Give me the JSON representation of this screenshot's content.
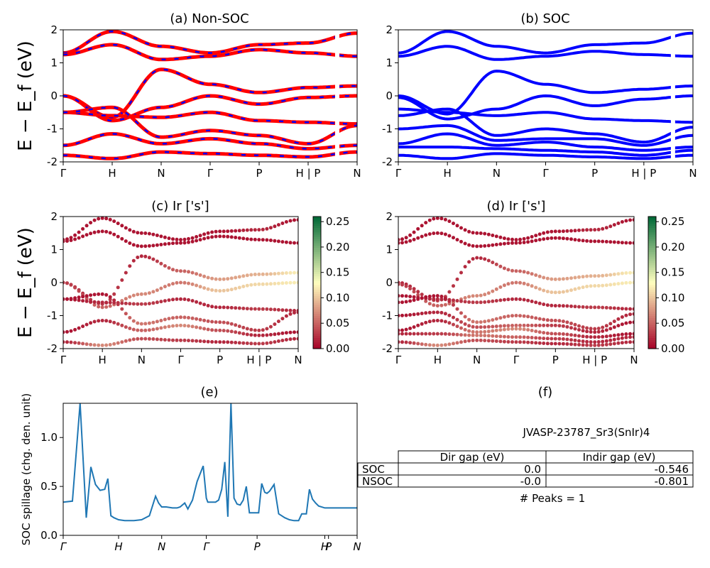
{
  "panels": {
    "a": {
      "title": "(a) Non-SOC"
    },
    "b": {
      "title": "(b) SOC"
    },
    "c": {
      "title": "(c)  Ir ['s']"
    },
    "d": {
      "title": "(d) Ir ['s']"
    },
    "e": {
      "title": "(e)"
    },
    "f": {
      "title": "(f)"
    }
  },
  "ylabel_main": "E − E_f (eV)",
  "ylabel_spillage": "SOC spillage (chg. den. unit)",
  "kpath_labels": [
    "Γ",
    "H",
    "N",
    "Γ",
    "P",
    "H | P",
    "N"
  ],
  "spillage_kpath_labels": [
    "Γ",
    "H",
    "N",
    "Γ",
    "P",
    "H",
    "P",
    "N"
  ],
  "colorbar_ticks": [
    "0.00",
    "0.05",
    "0.10",
    "0.15",
    "0.20",
    "0.25"
  ],
  "colormap": {
    "low": "#a50026",
    "mid": "#ffffbf",
    "high": "#006837"
  },
  "colors": {
    "nsoc_main": "#ff0000",
    "nsoc_dash": "#0000ff",
    "soc": "#0000ff",
    "spillage": "#1f77b4"
  },
  "info": {
    "material": "JVASP-23787_Sr3(SnIr)4",
    "table_headers": [
      "Dir gap (eV)",
      "Indir gap (eV)"
    ],
    "table_rows": [
      {
        "label": "SOC",
        "dir": "0.0",
        "indir": "-0.546"
      },
      {
        "label": "NSOC",
        "dir": "-0.0",
        "indir": "-0.801"
      }
    ],
    "peaks": "# Peaks = 1"
  },
  "chart_data": [
    {
      "type": "line",
      "title": "(a) Non-SOC",
      "ylabel": "E − E_f (eV)",
      "ylim": [
        -2,
        2
      ],
      "yticks": [
        -2,
        -1,
        0,
        1,
        2
      ],
      "x_ticks": [
        "Γ",
        "H",
        "N",
        "Γ",
        "P",
        "H | P",
        "N"
      ],
      "series": [
        {
          "x": [
            0,
            1,
            2,
            3,
            4,
            5,
            6
          ],
          "y": [
            1.3,
            1.95,
            1.5,
            1.3,
            1.55,
            1.6,
            1.9
          ]
        },
        {
          "x": [
            0,
            1,
            2,
            3,
            4,
            5,
            6
          ],
          "y": [
            1.25,
            1.55,
            1.1,
            1.2,
            1.4,
            1.3,
            1.2
          ]
        },
        {
          "x": [
            0,
            1,
            2,
            3,
            4,
            5,
            6
          ],
          "y": [
            0.0,
            -0.65,
            0.8,
            0.35,
            0.1,
            0.25,
            0.3
          ]
        },
        {
          "x": [
            0,
            1,
            2,
            3,
            4,
            5,
            6
          ],
          "y": [
            0.0,
            -0.75,
            -0.35,
            0.0,
            -0.25,
            -0.05,
            0.0
          ]
        },
        {
          "x": [
            0,
            1,
            2,
            3,
            4,
            5,
            6
          ],
          "y": [
            -0.5,
            -0.6,
            -0.65,
            -0.5,
            -0.75,
            -0.8,
            -0.85
          ]
        },
        {
          "x": [
            0,
            1,
            2,
            3,
            4,
            5,
            6
          ],
          "y": [
            -0.5,
            -0.35,
            -1.25,
            -1.05,
            -1.2,
            -1.45,
            -0.9
          ]
        },
        {
          "x": [
            0,
            1,
            2,
            3,
            4,
            5,
            6
          ],
          "y": [
            -1.5,
            -1.15,
            -1.45,
            -1.3,
            -1.45,
            -1.6,
            -1.5
          ]
        },
        {
          "x": [
            0,
            1,
            2,
            3,
            4,
            5,
            6
          ],
          "y": [
            -1.8,
            -1.9,
            -1.7,
            -1.75,
            -1.8,
            -1.85,
            -1.7
          ]
        }
      ]
    },
    {
      "type": "line",
      "title": "(b) SOC",
      "ylim": [
        -2,
        2
      ],
      "yticks": [
        -2,
        -1,
        0,
        1,
        2
      ],
      "x_ticks": [
        "Γ",
        "H",
        "N",
        "Γ",
        "P",
        "H | P",
        "N"
      ],
      "series": [
        {
          "x": [
            0,
            1,
            2,
            3,
            4,
            5,
            6
          ],
          "y": [
            1.3,
            1.95,
            1.5,
            1.3,
            1.55,
            1.6,
            1.9
          ]
        },
        {
          "x": [
            0,
            1,
            2,
            3,
            4,
            5,
            6
          ],
          "y": [
            1.2,
            1.5,
            1.1,
            1.2,
            1.35,
            1.25,
            1.2
          ]
        },
        {
          "x": [
            0,
            1,
            2,
            3,
            4,
            5,
            6
          ],
          "y": [
            0.0,
            -0.55,
            0.75,
            0.35,
            0.1,
            0.2,
            0.3
          ]
        },
        {
          "x": [
            0,
            1,
            2,
            3,
            4,
            5,
            6
          ],
          "y": [
            -0.05,
            -0.7,
            -0.4,
            0.0,
            -0.3,
            -0.1,
            0.0
          ]
        },
        {
          "x": [
            0,
            1,
            2,
            3,
            4,
            5,
            6
          ],
          "y": [
            -0.4,
            -0.5,
            -0.6,
            -0.5,
            -0.7,
            -0.75,
            -0.8
          ]
        },
        {
          "x": [
            0,
            1,
            2,
            3,
            4,
            5,
            6
          ],
          "y": [
            -0.6,
            -0.4,
            -1.2,
            -1.0,
            -1.15,
            -1.4,
            -0.95
          ]
        },
        {
          "x": [
            0,
            1,
            2,
            3,
            4,
            5,
            6
          ],
          "y": [
            -1.0,
            -0.9,
            -1.35,
            -1.3,
            -1.3,
            -1.5,
            -1.2
          ]
        },
        {
          "x": [
            0,
            1,
            2,
            3,
            4,
            5,
            6
          ],
          "y": [
            -1.45,
            -1.15,
            -1.5,
            -1.4,
            -1.55,
            -1.65,
            -1.55
          ]
        },
        {
          "x": [
            0,
            1,
            2,
            3,
            4,
            5,
            6
          ],
          "y": [
            -1.55,
            -1.55,
            -1.6,
            -1.65,
            -1.7,
            -1.8,
            -1.65
          ]
        },
        {
          "x": [
            0,
            1,
            2,
            3,
            4,
            5,
            6
          ],
          "y": [
            -1.8,
            -1.9,
            -1.75,
            -1.8,
            -1.85,
            -1.9,
            -1.8
          ]
        }
      ]
    },
    {
      "type": "scatter",
      "title": "(c)  Ir ['s']",
      "ylim": [
        -2,
        2
      ],
      "yticks": [
        -2,
        -1,
        0,
        1,
        2
      ],
      "x_ticks": [
        "Γ",
        "H",
        "N",
        "Γ",
        "P",
        "H | P",
        "N"
      ],
      "colorbar": {
        "min": 0.0,
        "max": 0.26,
        "ticks": [
          0,
          0.05,
          0.1,
          0.15,
          0.2,
          0.25
        ]
      },
      "series": [
        {
          "x": [
            0,
            1,
            2,
            3,
            4,
            5,
            6
          ],
          "y": [
            1.3,
            1.95,
            1.5,
            1.3,
            1.55,
            1.6,
            1.9
          ],
          "weight": [
            0.01,
            0.01,
            0.01,
            0.01,
            0.01,
            0.02,
            0.01
          ]
        },
        {
          "x": [
            0,
            1,
            2,
            3,
            4,
            5,
            6
          ],
          "y": [
            1.25,
            1.55,
            1.1,
            1.2,
            1.4,
            1.3,
            1.2
          ],
          "weight": [
            0.01,
            0.01,
            0.01,
            0.01,
            0.01,
            0.01,
            0.01
          ]
        },
        {
          "x": [
            0,
            1,
            2,
            3,
            4,
            5,
            6
          ],
          "y": [
            0.0,
            -0.65,
            0.8,
            0.35,
            0.1,
            0.25,
            0.3
          ],
          "weight": [
            0.02,
            0.03,
            0.02,
            0.05,
            0.08,
            0.09,
            0.12
          ]
        },
        {
          "x": [
            0,
            1,
            2,
            3,
            4,
            5,
            6
          ],
          "y": [
            0.0,
            -0.75,
            -0.35,
            0.0,
            -0.25,
            -0.05,
            0.0
          ],
          "weight": [
            0.03,
            0.05,
            0.07,
            0.06,
            0.1,
            0.11,
            0.12
          ]
        },
        {
          "x": [
            0,
            1,
            2,
            3,
            4,
            5,
            6
          ],
          "y": [
            -0.5,
            -0.6,
            -0.65,
            -0.5,
            -0.75,
            -0.8,
            -0.85
          ],
          "weight": [
            0.01,
            0.02,
            0.03,
            0.02,
            0.02,
            0.03,
            0.02
          ]
        },
        {
          "x": [
            0,
            1,
            2,
            3,
            4,
            5,
            6
          ],
          "y": [
            -0.5,
            -0.35,
            -1.25,
            -1.05,
            -1.2,
            -1.45,
            -0.9
          ],
          "weight": [
            0.01,
            0.01,
            0.06,
            0.05,
            0.04,
            0.03,
            0.02
          ]
        },
        {
          "x": [
            0,
            1,
            2,
            3,
            4,
            5,
            6
          ],
          "y": [
            -1.5,
            -1.15,
            -1.45,
            -1.3,
            -1.45,
            -1.6,
            -1.5
          ],
          "weight": [
            0.01,
            0.02,
            0.05,
            0.07,
            0.04,
            0.02,
            0.01
          ]
        },
        {
          "x": [
            0,
            1,
            2,
            3,
            4,
            5,
            6
          ],
          "y": [
            -1.8,
            -1.9,
            -1.7,
            -1.75,
            -1.8,
            -1.85,
            -1.7
          ],
          "weight": [
            0.02,
            0.07,
            0.04,
            0.03,
            0.02,
            0.03,
            0.02
          ]
        }
      ]
    },
    {
      "type": "scatter",
      "title": "(d) Ir ['s']",
      "ylim": [
        -2,
        2
      ],
      "yticks": [
        -2,
        -1,
        0,
        1,
        2
      ],
      "x_ticks": [
        "Γ",
        "H",
        "N",
        "Γ",
        "P",
        "H | P",
        "N"
      ],
      "colorbar": {
        "min": 0.0,
        "max": 0.26,
        "ticks": [
          0,
          0.05,
          0.1,
          0.15,
          0.2,
          0.25
        ]
      },
      "series": [
        {
          "x": [
            0,
            1,
            2,
            3,
            4,
            5,
            6
          ],
          "y": [
            1.3,
            1.95,
            1.5,
            1.3,
            1.55,
            1.6,
            1.9
          ],
          "weight": [
            0.01,
            0.01,
            0.01,
            0.01,
            0.01,
            0.02,
            0.01
          ]
        },
        {
          "x": [
            0,
            1,
            2,
            3,
            4,
            5,
            6
          ],
          "y": [
            1.2,
            1.5,
            1.1,
            1.2,
            1.35,
            1.25,
            1.2
          ],
          "weight": [
            0.01,
            0.01,
            0.01,
            0.01,
            0.01,
            0.01,
            0.01
          ]
        },
        {
          "x": [
            0,
            1,
            2,
            3,
            4,
            5,
            6
          ],
          "y": [
            0.0,
            -0.55,
            0.75,
            0.35,
            0.1,
            0.2,
            0.3
          ],
          "weight": [
            0.02,
            0.03,
            0.02,
            0.05,
            0.08,
            0.09,
            0.12
          ]
        },
        {
          "x": [
            0,
            1,
            2,
            3,
            4,
            5,
            6
          ],
          "y": [
            -0.05,
            -0.7,
            -0.4,
            0.0,
            -0.3,
            -0.1,
            0.0
          ],
          "weight": [
            0.03,
            0.05,
            0.07,
            0.06,
            0.1,
            0.11,
            0.12
          ]
        },
        {
          "x": [
            0,
            1,
            2,
            3,
            4,
            5,
            6
          ],
          "y": [
            -0.4,
            -0.5,
            -0.6,
            -0.5,
            -0.7,
            -0.75,
            -0.8
          ],
          "weight": [
            0.01,
            0.02,
            0.03,
            0.02,
            0.02,
            0.03,
            0.02
          ]
        },
        {
          "x": [
            0,
            1,
            2,
            3,
            4,
            5,
            6
          ],
          "y": [
            -0.6,
            -0.4,
            -1.2,
            -1.0,
            -1.15,
            -1.4,
            -0.95
          ],
          "weight": [
            0.01,
            0.01,
            0.06,
            0.05,
            0.04,
            0.03,
            0.02
          ]
        },
        {
          "x": [
            0,
            1,
            2,
            3,
            4,
            5,
            6
          ],
          "y": [
            -1.0,
            -0.9,
            -1.35,
            -1.3,
            -1.3,
            -1.5,
            -1.2
          ],
          "weight": [
            0.01,
            0.02,
            0.04,
            0.05,
            0.03,
            0.02,
            0.01
          ]
        },
        {
          "x": [
            0,
            1,
            2,
            3,
            4,
            5,
            6
          ],
          "y": [
            -1.45,
            -1.15,
            -1.5,
            -1.4,
            -1.55,
            -1.65,
            -1.55
          ],
          "weight": [
            0.01,
            0.02,
            0.06,
            0.07,
            0.04,
            0.02,
            0.01
          ]
        },
        {
          "x": [
            0,
            1,
            2,
            3,
            4,
            5,
            6
          ],
          "y": [
            -1.55,
            -1.55,
            -1.6,
            -1.65,
            -1.7,
            -1.8,
            -1.65
          ],
          "weight": [
            0.02,
            0.03,
            0.06,
            0.05,
            0.03,
            0.02,
            0.02
          ]
        },
        {
          "x": [
            0,
            1,
            2,
            3,
            4,
            5,
            6
          ],
          "y": [
            -1.8,
            -1.9,
            -1.75,
            -1.8,
            -1.85,
            -1.9,
            -1.8
          ],
          "weight": [
            0.02,
            0.07,
            0.04,
            0.03,
            0.02,
            0.03,
            0.02
          ]
        }
      ]
    },
    {
      "type": "line",
      "title": "(e)",
      "ylabel": "SOC spillage (chg. den. unit)",
      "ylim": [
        0.0,
        1.35
      ],
      "yticks": [
        0.0,
        0.5,
        1.0
      ],
      "x": [
        0,
        0.3,
        0.55,
        0.75,
        0.9,
        1.05,
        1.2,
        1.35,
        1.45,
        1.55,
        1.65,
        1.8,
        2.0,
        2.3,
        2.55,
        2.8,
        3.0,
        3.1,
        3.2,
        3.35,
        3.55,
        3.7,
        3.8,
        3.95,
        4.05,
        4.2,
        4.35,
        4.55,
        4.65,
        4.7,
        4.8,
        4.95,
        5.05,
        5.15,
        5.25,
        5.35,
        5.45,
        5.55,
        5.65,
        5.75,
        5.85,
        5.95,
        6.05,
        6.2,
        6.35,
        6.45,
        6.55,
        6.62,
        6.7,
        6.85,
        7.0,
        7.2,
        7.35,
        7.5,
        7.65,
        7.75,
        7.9,
        8.0,
        8.1,
        8.2,
        8.3,
        8.5,
        8.7,
        8.8,
        8.9,
        9.05,
        9.2,
        9.35,
        9.45,
        9.55
      ],
      "y": [
        0.34,
        0.35,
        1.35,
        0.18,
        0.7,
        0.52,
        0.46,
        0.47,
        0.58,
        0.2,
        0.18,
        0.16,
        0.15,
        0.15,
        0.16,
        0.2,
        0.4,
        0.33,
        0.29,
        0.29,
        0.28,
        0.28,
        0.29,
        0.33,
        0.27,
        0.36,
        0.55,
        0.71,
        0.38,
        0.34,
        0.34,
        0.34,
        0.36,
        0.47,
        0.75,
        0.19,
        1.35,
        0.38,
        0.32,
        0.31,
        0.36,
        0.5,
        0.23,
        0.23,
        0.23,
        0.53,
        0.44,
        0.43,
        0.45,
        0.52,
        0.22,
        0.18,
        0.16,
        0.15,
        0.15,
        0.22,
        0.22,
        0.47,
        0.37,
        0.33,
        0.3,
        0.28,
        0.28,
        0.28,
        0.28,
        0.28,
        0.28,
        0.28,
        0.28,
        0.28
      ],
      "x_ticks": [
        "Γ",
        "H",
        "N",
        "Γ",
        "P",
        "H",
        "P",
        "N"
      ]
    }
  ]
}
